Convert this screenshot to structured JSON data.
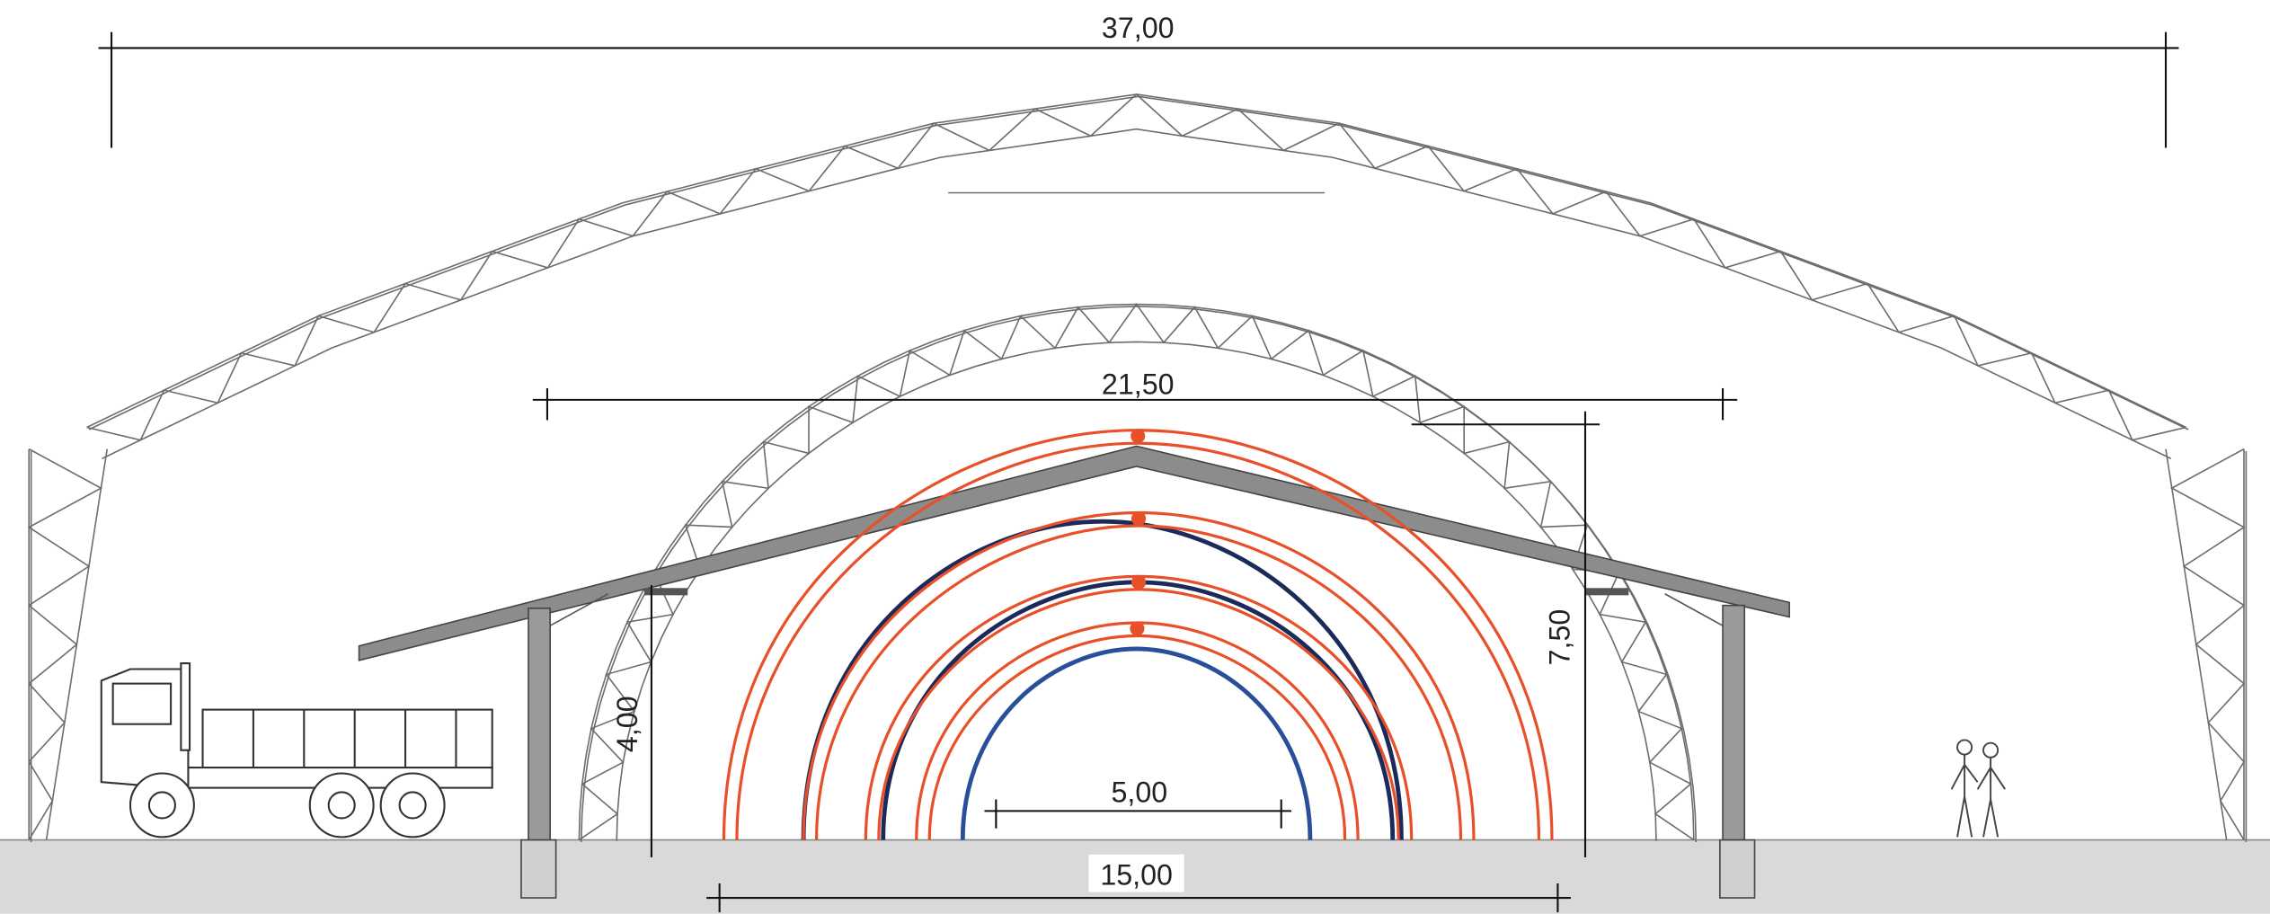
{
  "dimensions": [
    "37,00",
    "21,50",
    "7,50",
    "4,00",
    "5,00",
    "15,00"
  ]
}
